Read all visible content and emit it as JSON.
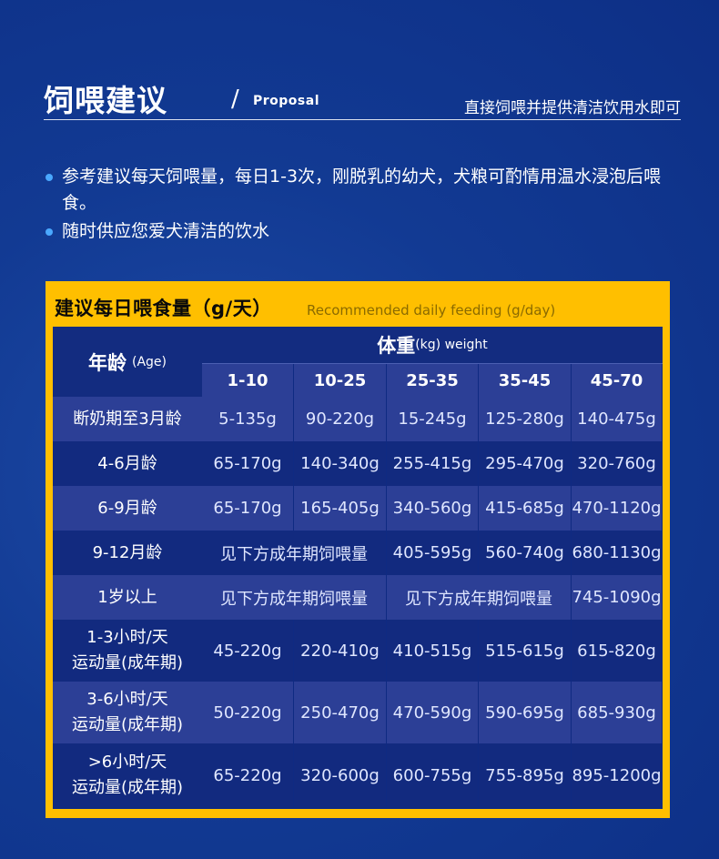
{
  "header": {
    "title": "饲喂建议",
    "slash": "/",
    "subtitle": "Proposal",
    "tagline": "直接饲喂并提供清洁饮用水即可"
  },
  "bullets": [
    "参考建议每天饲喂量，每日1-3次，刚脱乳的幼犬，犬粮可酌情用温水浸泡后喂食。",
    "随时供应您爱犬清洁的饮水"
  ],
  "table": {
    "title": "建议每日喂食量（g/天）",
    "subtitle": "Recommended daily feeding (g/day)",
    "age_header": "年龄",
    "age_header_en": "(Age)",
    "weight_header": "体重",
    "weight_header_unit": "(kg) weight",
    "columns": [
      "1-10",
      "10-25",
      "25-35",
      "35-45",
      "45-70"
    ],
    "rows": [
      {
        "label": "断奶期至3月龄",
        "values": [
          "5-135g",
          "90-220g",
          "15-245g",
          "125-280g",
          "140-475g"
        ]
      },
      {
        "label": "4-6月龄",
        "values": [
          "65-170g",
          "140-340g",
          "255-415g",
          "295-470g",
          "320-760g"
        ]
      },
      {
        "label": "6-9月龄",
        "values": [
          "65-170g",
          "165-405g",
          "340-560g",
          "415-685g",
          "470-1120g"
        ]
      },
      {
        "label": "9-12月龄",
        "merged": "见下方成年期饲喂量",
        "values": [
          "405-595g",
          "560-740g",
          "680-1130g"
        ]
      },
      {
        "label": "1岁以上",
        "merged": "见下方成年期饲喂量",
        "merged2": "见下方成年期饲喂量",
        "values": [
          "745-1090g"
        ]
      },
      {
        "label_line1": "1-3小时/天",
        "label_line2": "运动量(成年期)",
        "values": [
          "45-220g",
          "220-410g",
          "410-515g",
          "515-615g",
          "615-820g"
        ]
      },
      {
        "label_line1": "3-6小时/天",
        "label_line2": "运动量(成年期)",
        "values": [
          "50-220g",
          "250-470g",
          "470-590g",
          "590-695g",
          "685-930g"
        ]
      },
      {
        "label_line1": ">6小时/天",
        "label_line2": "运动量(成年期)",
        "values": [
          "65-220g",
          "320-600g",
          "600-755g",
          "755-895g",
          "895-1200g"
        ]
      }
    ]
  },
  "colors": {
    "background": "#123a93",
    "accent": "#ffbf00",
    "bullet": "#4aa8ff",
    "table_dark": "#122a7f",
    "table_light": "#2c3f96"
  }
}
